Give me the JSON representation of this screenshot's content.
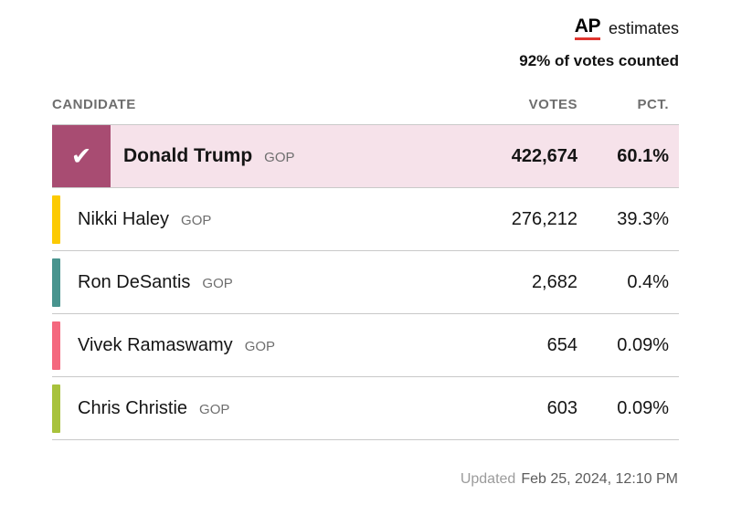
{
  "header": {
    "ap_logo": "AP",
    "estimates_label": "estimates",
    "votes_counted": "92% of votes counted"
  },
  "table": {
    "columns": {
      "candidate": "CANDIDATE",
      "votes": "VOTES",
      "pct": "PCT."
    },
    "check_icon": "✔",
    "winner_row_bg": "#f6e2ea",
    "rows": [
      {
        "name": "Donald Trump",
        "party": "GOP",
        "votes": "422,674",
        "pct": "60.1%",
        "color": "#a84c72",
        "winner": true
      },
      {
        "name": "Nikki Haley",
        "party": "GOP",
        "votes": "276,212",
        "pct": "39.3%",
        "color": "#fcca02",
        "winner": false
      },
      {
        "name": "Ron DeSantis",
        "party": "GOP",
        "votes": "2,682",
        "pct": "0.4%",
        "color": "#48948e",
        "winner": false
      },
      {
        "name": "Vivek Ramaswamy",
        "party": "GOP",
        "votes": "654",
        "pct": "0.09%",
        "color": "#f4687e",
        "winner": false
      },
      {
        "name": "Chris Christie",
        "party": "GOP",
        "votes": "603",
        "pct": "0.09%",
        "color": "#a8c23c",
        "winner": false
      }
    ]
  },
  "footer": {
    "updated_label": "Updated",
    "updated_time": "Feb 25, 2024, 12:10 PM"
  },
  "chart_data": {
    "type": "table",
    "title": "AP estimates — 92% of votes counted",
    "columns": [
      "CANDIDATE",
      "VOTES",
      "PCT."
    ],
    "rows": [
      [
        "Donald Trump (GOP)",
        422674,
        "60.1%"
      ],
      [
        "Nikki Haley (GOP)",
        276212,
        "39.3%"
      ],
      [
        "Ron DeSantis (GOP)",
        2682,
        "0.4%"
      ],
      [
        "Vivek Ramaswamy (GOP)",
        654,
        "0.09%"
      ],
      [
        "Chris Christie (GOP)",
        603,
        "0.09%"
      ]
    ],
    "winner": "Donald Trump",
    "updated": "Feb 25, 2024, 12:10 PM"
  }
}
